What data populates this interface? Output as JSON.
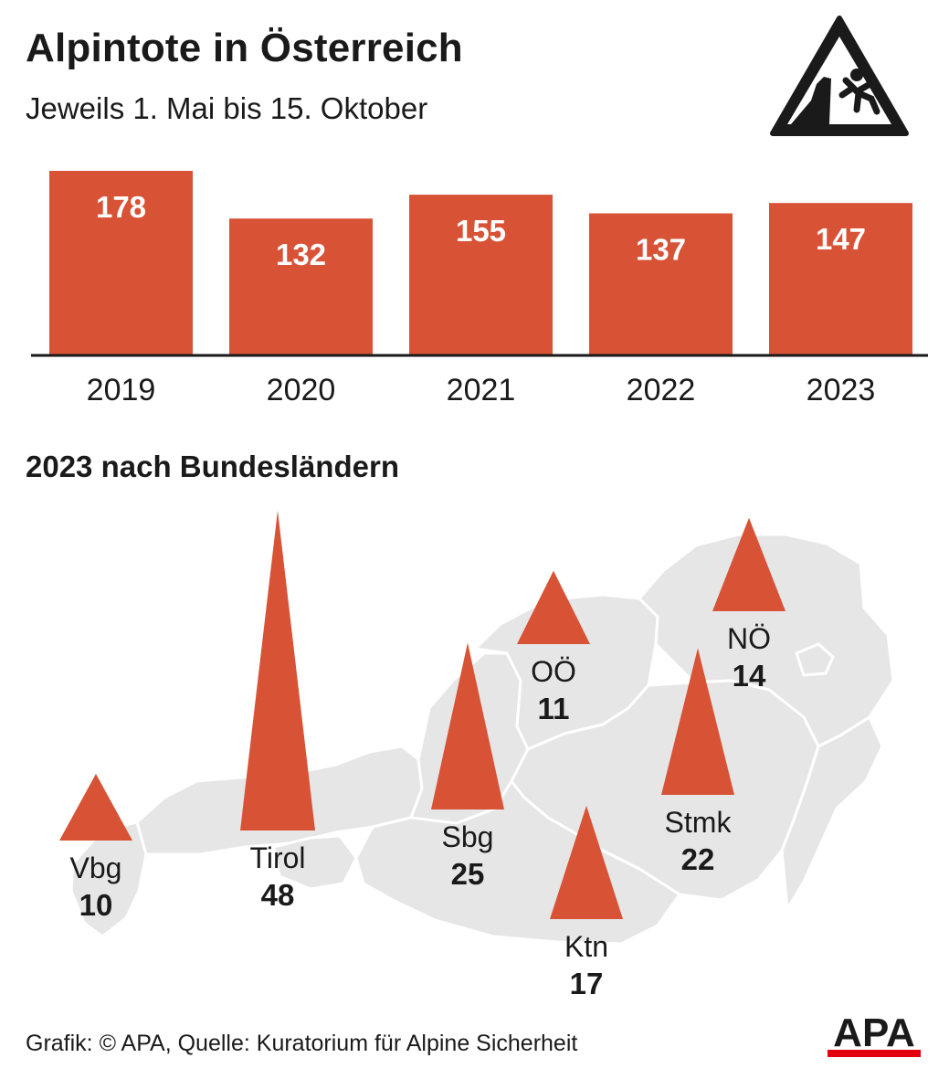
{
  "header": {
    "title": "Alpintote in Österreich",
    "subtitle": "Jeweils 1. Mai bis 15. Oktober"
  },
  "section": {
    "title": "2023 nach Bundesländern"
  },
  "footer": {
    "source": "Grafik: © APA, Quelle: Kuratorium für Alpine Sicherheit",
    "logo_text": "APA"
  },
  "icons": {
    "warning": "falling-climber-warning-sign-icon",
    "logo": "apa-logo"
  },
  "colors": {
    "accent": "#d85236",
    "map": "#e6e6e6",
    "text": "#1a1a1a",
    "logo_red": "#e3000f"
  },
  "chart_data": [
    {
      "type": "bar",
      "categories": [
        "2019",
        "2020",
        "2021",
        "2022",
        "2023"
      ],
      "values": [
        178,
        132,
        155,
        137,
        147
      ],
      "ylim": [
        0,
        178
      ],
      "grid": false
    },
    {
      "type": "bar",
      "variant": "triangles-on-map",
      "categories": [
        "Vbg",
        "Tirol",
        "Sbg",
        "OÖ",
        "NÖ",
        "Stmk",
        "Ktn"
      ],
      "values": [
        10,
        48,
        25,
        11,
        14,
        22,
        17
      ],
      "grid": false
    }
  ]
}
